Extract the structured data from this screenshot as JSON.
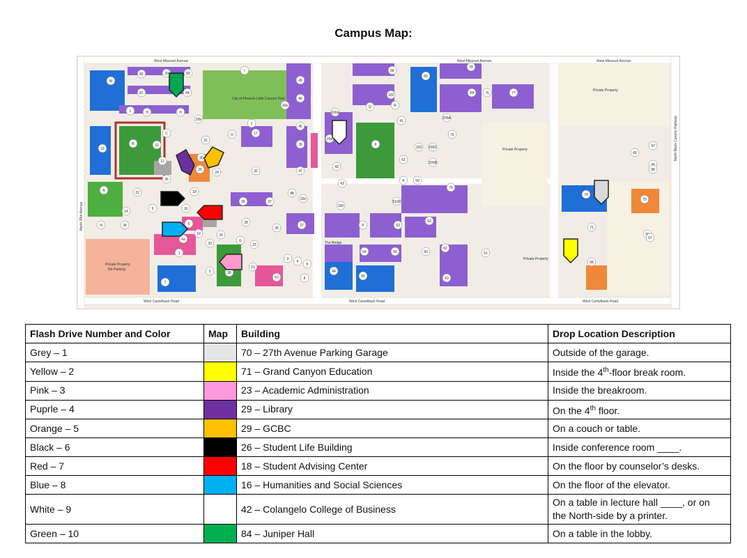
{
  "page_title": "Campus Map:",
  "map": {
    "streets": {
      "top_left": "West Missouri Avenue",
      "top_mid": "West Missouri Avenue",
      "top_right": "West Missouri Avenue",
      "bottom_left": "West Camelback Road",
      "bottom_mid": "West Camelback Road",
      "bottom_right": "West Camelback Road",
      "left": "North 35th Avenue",
      "right": "North Black Canyon Highway",
      "bridge": "The Bridge"
    },
    "park": "City of Phoenix Little Canyon Park",
    "private_property": "Private Property",
    "no_parking": "No Parking",
    "building_labels": [
      "80",
      "82",
      "20",
      "83",
      "84",
      "81",
      "L",
      "H",
      "H",
      "C",
      "B",
      "10",
      "15",
      "12",
      "A",
      "22",
      "9",
      "14",
      "N",
      "34",
      "7",
      "1",
      "2",
      "38",
      "21",
      "57",
      "8",
      "3",
      "4",
      "5",
      "44",
      "55",
      "54",
      "56",
      "60",
      "62",
      "63",
      "51",
      "58",
      "59",
      "49",
      "46",
      "45",
      "39",
      "47",
      "48",
      "36",
      "37",
      "20c",
      "28",
      "27",
      "35",
      "24",
      "33",
      "23",
      "19",
      "6a",
      "6",
      "16",
      "18",
      "26",
      "25",
      "29",
      "32",
      "17",
      "31",
      "30",
      "29a",
      "42",
      "43",
      "100",
      "100a",
      "41",
      "102",
      "R",
      "Q",
      "K",
      "50",
      "61",
      "103",
      "200C",
      "200B",
      "200A",
      "20f",
      "76",
      "77",
      "78",
      "75",
      "79",
      "74",
      "70",
      "66",
      "97",
      "96",
      "98",
      "99",
      "67",
      "68",
      "71",
      "P",
      "S3",
      "S2",
      "5100",
      "20e",
      "20b",
      "O",
      "J",
      "G",
      "F",
      "I",
      "M"
    ],
    "flags": [
      {
        "color": "#00a651",
        "label": "green"
      },
      {
        "color": "#6b2fa0",
        "label": "purple"
      },
      {
        "color": "#ffc000",
        "label": "orange"
      },
      {
        "color": "#000000",
        "label": "black"
      },
      {
        "color": "#ff0000",
        "label": "red"
      },
      {
        "color": "#00b0f0",
        "label": "blue"
      },
      {
        "color": "#ff99cc",
        "label": "pink"
      },
      {
        "color": "#ffffff",
        "label": "white"
      },
      {
        "color": "#d9d9d9",
        "label": "grey"
      },
      {
        "color": "#ffff00",
        "label": "yellow"
      }
    ]
  },
  "table": {
    "headers": [
      "Flash Drive Number and Color",
      "Map",
      "Building",
      "Drop Location Description"
    ],
    "rows": [
      {
        "drive": "Grey – 1",
        "color": "#e7e6e6",
        "building": "70 – 27th Avenue Parking Garage",
        "desc_pre": "Outside of the garage.",
        "sup": "",
        "desc_post": ""
      },
      {
        "drive": "Yellow – 2",
        "color": "#ffff00",
        "building": "71 – Grand Canyon Education",
        "desc_pre": "Inside the 4",
        "sup": "th",
        "desc_post": "-floor break room."
      },
      {
        "drive": "Pink – 3",
        "color": "#ff99dd",
        "building": "23 – Academic Administration",
        "desc_pre": "Inside the breakroom.",
        "sup": "",
        "desc_post": ""
      },
      {
        "drive": "Puprle – 4",
        "color": "#7030a0",
        "building": "29 – Library",
        "desc_pre": "On the 4",
        "sup": "th",
        "desc_post": " floor."
      },
      {
        "drive": "Orange – 5",
        "color": "#ffc000",
        "building": "29 – GCBC",
        "desc_pre": "On a couch or table.",
        "sup": "",
        "desc_post": ""
      },
      {
        "drive": "Black – 6",
        "color": "#000000",
        "building": "26 – Student Life Building",
        "desc_pre": "Inside conference room ____.",
        "sup": "",
        "desc_post": ""
      },
      {
        "drive": "Red – 7",
        "color": "#ff0000",
        "building": "18 – Student Advising Center",
        "desc_pre": "On the floor by counselor’s desks.",
        "sup": "",
        "desc_post": ""
      },
      {
        "drive": "Blue – 8",
        "color": "#00b0f0",
        "building": "16 – Humanities and Social Sciences",
        "desc_pre": "On the floor of the elevator.",
        "sup": "",
        "desc_post": ""
      },
      {
        "drive": "White – 9",
        "color": "#ffffff",
        "building": "42 – Colangelo College of Business",
        "desc_pre": "On a table in lecture hall ____, or on the North-side by a printer.",
        "sup": "",
        "desc_post": ""
      },
      {
        "drive": "Green – 10",
        "color": "#00b050",
        "building": "84 – Juniper Hall",
        "desc_pre": "On a table in the lobby.",
        "sup": "",
        "desc_post": ""
      }
    ]
  }
}
